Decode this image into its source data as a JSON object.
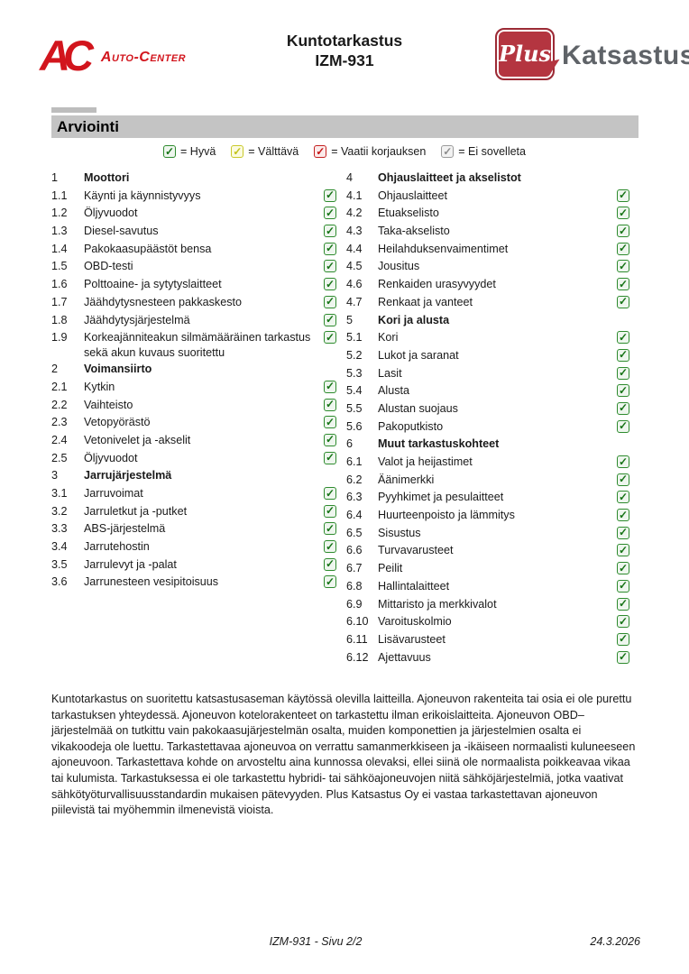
{
  "header": {
    "auto_center_mark": "AC",
    "auto_center_name": "Auto-Center",
    "title_line1": "Kuntotarkastus",
    "title_line2": "IZM-931",
    "plus_word": "Plus",
    "katsastus_word": "Katsastus"
  },
  "section_title": "Arviointi",
  "legend": [
    {
      "status": "good",
      "label": "= Hyvä"
    },
    {
      "status": "fair",
      "label": "= Välttävä"
    },
    {
      "status": "repair",
      "label": "= Vaatii korjauksen"
    },
    {
      "status": "na",
      "label": "= Ei sovelleta"
    }
  ],
  "colors": {
    "brand_red": "#d2151d",
    "plus_box_red": "#b43540",
    "katsastus_gray": "#5f6368",
    "section_bar_gray": "#c4c4c4",
    "status_good": "#2e8b2e",
    "status_fair": "#c9c92a",
    "status_repair": "#c42020",
    "status_na": "#9b9b9b"
  },
  "checklist": {
    "left": [
      {
        "type": "section",
        "num": "1",
        "label": "Moottori"
      },
      {
        "type": "item",
        "num": "1.1",
        "label": "Käynti ja käynnistyvyys",
        "status": "good"
      },
      {
        "type": "item",
        "num": "1.2",
        "label": "Öljyvuodot",
        "status": "good"
      },
      {
        "type": "item",
        "num": "1.3",
        "label": "Diesel-savutus",
        "status": "good"
      },
      {
        "type": "item",
        "num": "1.4",
        "label": "Pakokaasupäästöt bensa",
        "status": "good"
      },
      {
        "type": "item",
        "num": "1.5",
        "label": "OBD-testi",
        "status": "good"
      },
      {
        "type": "item",
        "num": "1.6",
        "label": "Polttoaine- ja sytytyslaitteet",
        "status": "good"
      },
      {
        "type": "item",
        "num": "1.7",
        "label": "Jäähdytysnesteen pakkaskesto",
        "status": "good"
      },
      {
        "type": "item",
        "num": "1.8",
        "label": "Jäähdytysjärjestelmä",
        "status": "good"
      },
      {
        "type": "item",
        "num": "1.9",
        "label": "Korkeajänniteakun silmämääräinen tarkastus sekä akun kuvaus suoritettu",
        "status": "good"
      },
      {
        "type": "section",
        "num": "2",
        "label": "Voimansiirto"
      },
      {
        "type": "item",
        "num": "2.1",
        "label": "Kytkin",
        "status": "good"
      },
      {
        "type": "item",
        "num": "2.2",
        "label": "Vaihteisto",
        "status": "good"
      },
      {
        "type": "item",
        "num": "2.3",
        "label": "Vetopyörästö",
        "status": "good"
      },
      {
        "type": "item",
        "num": "2.4",
        "label": "Vetonivelet ja -akselit",
        "status": "good"
      },
      {
        "type": "item",
        "num": "2.5",
        "label": "Öljyvuodot",
        "status": "good"
      },
      {
        "type": "section",
        "num": "3",
        "label": "Jarrujärjestelmä"
      },
      {
        "type": "item",
        "num": "3.1",
        "label": "Jarruvoimat",
        "status": "good"
      },
      {
        "type": "item",
        "num": "3.2",
        "label": "Jarruletkut ja -putket",
        "status": "good"
      },
      {
        "type": "item",
        "num": "3.3",
        "label": "ABS-järjestelmä",
        "status": "good"
      },
      {
        "type": "item",
        "num": "3.4",
        "label": "Jarrutehostin",
        "status": "good"
      },
      {
        "type": "item",
        "num": "3.5",
        "label": "Jarrulevyt ja -palat",
        "status": "good"
      },
      {
        "type": "item",
        "num": "3.6",
        "label": "Jarrunesteen vesipitoisuus",
        "status": "good"
      }
    ],
    "right": [
      {
        "type": "section",
        "num": "4",
        "label": "Ohjauslaitteet ja akselistot"
      },
      {
        "type": "item",
        "num": "4.1",
        "label": "Ohjauslaitteet",
        "status": "good"
      },
      {
        "type": "item",
        "num": "4.2",
        "label": "Etuakselisto",
        "status": "good"
      },
      {
        "type": "item",
        "num": "4.3",
        "label": "Taka-akselisto",
        "status": "good"
      },
      {
        "type": "item",
        "num": "4.4",
        "label": "Heilahduksenvaimentimet",
        "status": "good"
      },
      {
        "type": "item",
        "num": "4.5",
        "label": "Jousitus",
        "status": "good"
      },
      {
        "type": "item",
        "num": "4.6",
        "label": "Renkaiden urasyvyydet",
        "status": "good"
      },
      {
        "type": "item",
        "num": "4.7",
        "label": "Renkaat ja vanteet",
        "status": "good"
      },
      {
        "type": "section",
        "num": "5",
        "label": "Kori ja alusta"
      },
      {
        "type": "item",
        "num": "5.1",
        "label": "Kori",
        "status": "good"
      },
      {
        "type": "item",
        "num": "5.2",
        "label": "Lukot ja saranat",
        "status": "good"
      },
      {
        "type": "item",
        "num": "5.3",
        "label": "Lasit",
        "status": "good"
      },
      {
        "type": "item",
        "num": "5.4",
        "label": "Alusta",
        "status": "good"
      },
      {
        "type": "item",
        "num": "5.5",
        "label": "Alustan suojaus",
        "status": "good"
      },
      {
        "type": "item",
        "num": "5.6",
        "label": "Pakoputkisto",
        "status": "good"
      },
      {
        "type": "section",
        "num": "6",
        "label": "Muut tarkastuskohteet"
      },
      {
        "type": "item",
        "num": "6.1",
        "label": "Valot ja heijastimet",
        "status": "good"
      },
      {
        "type": "item",
        "num": "6.2",
        "label": "Äänimerkki",
        "status": "good"
      },
      {
        "type": "item",
        "num": "6.3",
        "label": "Pyyhkimet ja pesulaitteet",
        "status": "good"
      },
      {
        "type": "item",
        "num": "6.4",
        "label": "Huurteenpoisto ja lämmitys",
        "status": "good"
      },
      {
        "type": "item",
        "num": "6.5",
        "label": "Sisustus",
        "status": "good"
      },
      {
        "type": "item",
        "num": "6.6",
        "label": "Turvavarusteet",
        "status": "good"
      },
      {
        "type": "item",
        "num": "6.7",
        "label": "Peilit",
        "status": "good"
      },
      {
        "type": "item",
        "num": "6.8",
        "label": "Hallintalaitteet",
        "status": "good"
      },
      {
        "type": "item",
        "num": "6.9",
        "label": "Mittaristo ja merkkivalot",
        "status": "good"
      },
      {
        "type": "item",
        "num": "6.10",
        "label": "Varoituskolmio",
        "status": "good"
      },
      {
        "type": "item",
        "num": "6.11",
        "label": "Lisävarusteet",
        "status": "good"
      },
      {
        "type": "item",
        "num": "6.12",
        "label": "Ajettavuus",
        "status": "good"
      }
    ]
  },
  "disclaimer": "Kuntotarkastus on suoritettu katsastusaseman käytössä olevilla laitteilla. Ajoneuvon rakenteita tai osia ei ole purettu tarkastuksen yhteydessä. Ajoneuvon kotelorakenteet on tarkastettu ilman erikoislaitteita. Ajoneuvon OBD–järjestelmää on tutkittu vain pakokaasujärjestelmän osalta, muiden komponettien ja järjestelmien osalta ei vikakoodeja ole luettu. Tarkastettavaa ajoneuvoa on verrattu samanmerkkiseen ja -ikäiseen normaalisti kuluneeseen ajoneuvoon. Tarkastettava kohde on arvosteltu aina kunnossa olevaksi, ellei siinä ole normaalista poikkeavaa vikaa tai kulumista. Tarkastuksessa ei ole tarkastettu hybridi- tai sähköajoneuvojen niitä sähköjärjestelmiä, jotka vaativat sähkötyöturvallisuusstandardin mukaisen pätevyyden. Plus Katsastus Oy ei vastaa tarkastettavan ajoneuvon piilevistä tai myöhemmin ilmenevistä vioista.",
  "footer": {
    "page_label": "IZM-931 - Sivu 2/2",
    "date": "24.3.2026"
  }
}
